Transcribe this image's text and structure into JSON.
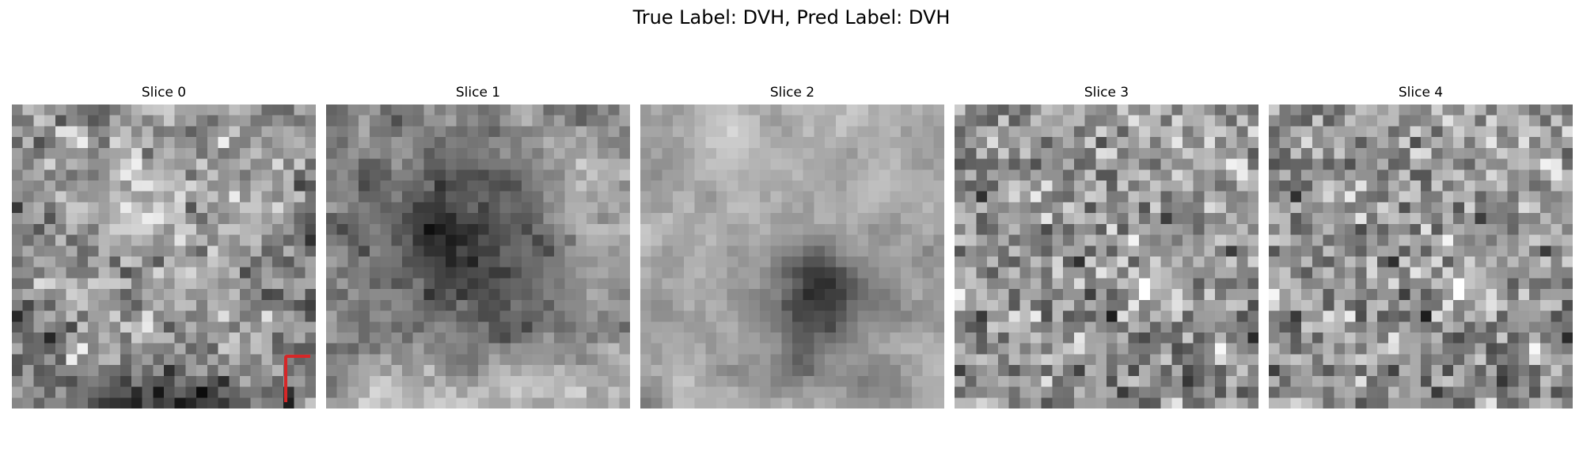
{
  "figure": {
    "title": "True Label: DVH, Pred Label: DVH",
    "true_label": "DVH",
    "pred_label": "DVH"
  },
  "slices": [
    {
      "title": "Slice 0"
    },
    {
      "title": "Slice 1"
    },
    {
      "title": "Slice 2"
    },
    {
      "title": "Slice 3"
    },
    {
      "title": "Slice 4"
    }
  ],
  "image": {
    "colormap": "gray",
    "grid_size": 28
  },
  "marker": {
    "slice_index": 0,
    "color": "#d62728",
    "shape": "corner-bracket",
    "location": "bottom-right"
  }
}
